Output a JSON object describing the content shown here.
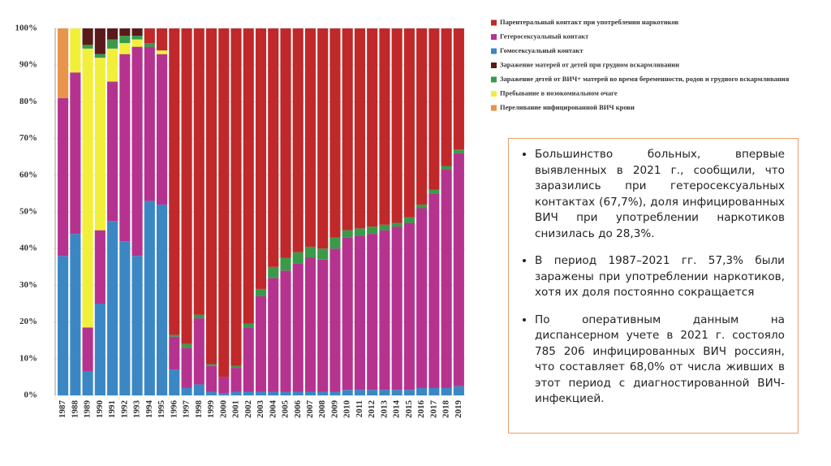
{
  "chart_data": {
    "type": "stacked_bar",
    "categories": [
      "1987",
      "1988",
      "1989",
      "1990",
      "1991",
      "1992",
      "1993",
      "1994",
      "1995",
      "1996",
      "1997",
      "1998",
      "1999",
      "2000",
      "2001",
      "2002",
      "2003",
      "2004",
      "2005",
      "2006",
      "2007",
      "2008",
      "2009",
      "2010",
      "2011",
      "2012",
      "2013",
      "2014",
      "2015",
      "2016",
      "2017",
      "2018",
      "2019"
    ],
    "ylim": [
      0,
      100
    ],
    "yticks": [
      {
        "value": 0,
        "label": "0%"
      },
      {
        "value": 10,
        "label": "10%"
      },
      {
        "value": 20,
        "label": "20%"
      },
      {
        "value": 30,
        "label": "30%"
      },
      {
        "value": 40,
        "label": "40%"
      },
      {
        "value": 50,
        "label": "50%"
      },
      {
        "value": 60,
        "label": "60%"
      },
      {
        "value": 70,
        "label": "70%"
      },
      {
        "value": 80,
        "label": "80%"
      },
      {
        "value": 90,
        "label": "90%"
      },
      {
        "value": 100,
        "label": "100%"
      }
    ],
    "series": [
      {
        "name": "Парентеральный контакт при употреблении наркотиков",
        "color": "#c0282a",
        "values": [
          0,
          0,
          0,
          0,
          0,
          0,
          0,
          4,
          6,
          83.5,
          86,
          78,
          91.5,
          95,
          92,
          80.5,
          71,
          65,
          62.5,
          61,
          59.5,
          60,
          57,
          55,
          54.5,
          54,
          53.5,
          53,
          51.5,
          48,
          44,
          37.5,
          33
        ]
      },
      {
        "name": "Гетеросексуальный контакт",
        "color": "#b5338f",
        "values": [
          43,
          44,
          12,
          20,
          38,
          51,
          57,
          42,
          41,
          9,
          11,
          18,
          7,
          4.5,
          6.5,
          17.5,
          26,
          31,
          33,
          35,
          36.5,
          36,
          39,
          41.5,
          42,
          42.5,
          43.5,
          44.5,
          45.5,
          49,
          53,
          59.5,
          63.5
        ]
      },
      {
        "name": "Гомосексуальный контакт",
        "color": "#3b87c4",
        "values": [
          38,
          44,
          6.5,
          25,
          47.5,
          42,
          38,
          53,
          52,
          7,
          2,
          3,
          1,
          0.5,
          1,
          1,
          1,
          1,
          1,
          1,
          1,
          1,
          1,
          1.5,
          1.5,
          1.5,
          1.5,
          1.5,
          1.5,
          2,
          2,
          2,
          2.5
        ]
      },
      {
        "name": "Заражение матерей от детей при грудном вскармливании",
        "color": "#5a1a1a",
        "values": [
          0,
          0,
          4.5,
          7,
          3,
          2,
          2,
          0,
          0,
          0,
          0,
          0,
          0,
          0,
          0,
          0,
          0,
          0,
          0,
          0,
          0,
          0,
          0,
          0,
          0,
          0,
          0,
          0,
          0,
          0,
          0,
          0,
          0
        ]
      },
      {
        "name": "Заражение детей от ВИЧ+ матерей во время беременности, родов и грудного вскармливания",
        "color": "#3a9a4a",
        "values": [
          0,
          0,
          1,
          1,
          2.5,
          2,
          1,
          1,
          0,
          0.5,
          1,
          1,
          0.5,
          0,
          0.5,
          1,
          2,
          3,
          3.5,
          3,
          3,
          3,
          3,
          2,
          2,
          2,
          1.5,
          1,
          1.5,
          1,
          1,
          1,
          1
        ]
      },
      {
        "name": "Пребывание в нозокомиальном очаге",
        "color": "#f2ef3a",
        "values": [
          0,
          12,
          76,
          47,
          9,
          3,
          2,
          0,
          1,
          0,
          0,
          0,
          0,
          0,
          0,
          0,
          0,
          0,
          0,
          0,
          0,
          0,
          0,
          0,
          0,
          0,
          0,
          0,
          0,
          0,
          0,
          0,
          0
        ]
      },
      {
        "name": "Переливание  инфицированной ВИЧ крови",
        "color": "#e8944a",
        "values": [
          19,
          0,
          0,
          0,
          0,
          0,
          0,
          0,
          0,
          0,
          0,
          0,
          0,
          0,
          0,
          0,
          0,
          0,
          0,
          0,
          0,
          0,
          0,
          0,
          0,
          0,
          0,
          0,
          0,
          0,
          0,
          0,
          0
        ]
      }
    ],
    "grid": true
  },
  "text_box": {
    "bullets": [
      "Большинство больных, впервые выявленных в 2021 г., сообщили, что заразились при гетеросексуальных контактах (67,7%), доля инфицированных ВИЧ при употреблении наркотиков снизилась до 28,3%.",
      "В период 1987–2021 гг. 57,3% были заражены при употреблении наркотиков, хотя их доля постоянно сокращается",
      "По оперативным данным на диспансерном учете в 2021 г. состояло 785 206 инфицированных ВИЧ россиян, что составляет 68,0% от числа живших в этот период с диагностированной ВИЧ-инфекцией."
    ]
  }
}
